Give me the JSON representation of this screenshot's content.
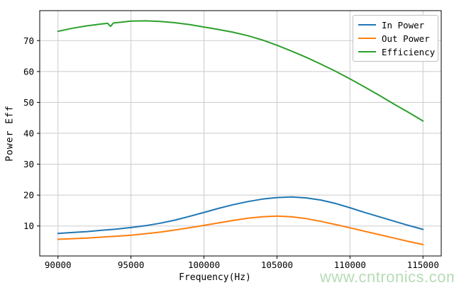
{
  "watermark": {
    "text": "www.cntronics.com",
    "color": "#b7dbb7"
  },
  "colors": {
    "grid": "#cbcbcb",
    "spine": "#000000",
    "tick_text": "#000000",
    "legend_border": "#c0c0c0"
  },
  "chart_data": {
    "type": "line",
    "title": "",
    "xlabel": "Frequency(Hz)",
    "ylabel": "Power Eff",
    "grid": true,
    "legend_position": "upper right",
    "xlim": [
      88750,
      116250
    ],
    "ylim": [
      0.3,
      79.7
    ],
    "x_ticks": [
      90000,
      95000,
      100000,
      105000,
      110000,
      115000
    ],
    "y_ticks": [
      10,
      20,
      30,
      40,
      50,
      60,
      70
    ],
    "series": [
      {
        "name": "In Power",
        "color": "#1f77b4",
        "x": [
          90000,
          91000,
          92000,
          93000,
          94000,
          95000,
          96000,
          97000,
          98000,
          99000,
          100000,
          101000,
          102000,
          103000,
          104000,
          105000,
          106000,
          107000,
          108000,
          109000,
          110000,
          111000,
          112000,
          113000,
          114000,
          115000
        ],
        "y": [
          7.6,
          7.9,
          8.2,
          8.6,
          9.0,
          9.5,
          10.1,
          10.9,
          11.9,
          13.1,
          14.4,
          15.7,
          16.9,
          17.9,
          18.7,
          19.2,
          19.4,
          19.1,
          18.4,
          17.3,
          15.9,
          14.4,
          13.0,
          11.6,
          10.2,
          8.9
        ]
      },
      {
        "name": "Out Power",
        "color": "#ff7f0e",
        "x": [
          90000,
          91000,
          92000,
          93000,
          94000,
          95000,
          96000,
          97000,
          98000,
          99000,
          100000,
          101000,
          102000,
          103000,
          104000,
          105000,
          106000,
          107000,
          108000,
          109000,
          110000,
          111000,
          112000,
          113000,
          114000,
          115000
        ],
        "y": [
          5.7,
          5.9,
          6.1,
          6.4,
          6.7,
          7.0,
          7.5,
          8.0,
          8.7,
          9.4,
          10.2,
          11.0,
          11.8,
          12.5,
          13.0,
          13.2,
          13.0,
          12.4,
          11.5,
          10.5,
          9.4,
          8.3,
          7.2,
          6.1,
          5.0,
          4.0
        ]
      },
      {
        "name": "Efficiency",
        "color": "#2ca02c",
        "x": [
          90000,
          91000,
          92000,
          93000,
          93400,
          93600,
          93800,
          94000,
          95000,
          96000,
          97000,
          98000,
          99000,
          100000,
          101000,
          102000,
          103000,
          104000,
          105000,
          106000,
          107000,
          108000,
          109000,
          110000,
          111000,
          112000,
          113000,
          114000,
          115000
        ],
        "y": [
          73.0,
          74.0,
          74.8,
          75.4,
          75.6,
          74.6,
          75.7,
          75.8,
          76.3,
          76.4,
          76.2,
          75.8,
          75.2,
          74.4,
          73.6,
          72.7,
          71.6,
          70.2,
          68.5,
          66.6,
          64.6,
          62.4,
          60.1,
          57.6,
          55.0,
          52.3,
          49.5,
          46.8,
          44.0
        ]
      }
    ]
  }
}
